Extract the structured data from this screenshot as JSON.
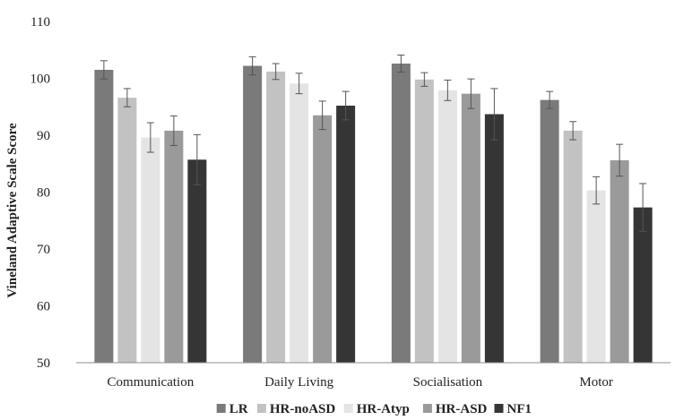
{
  "chart_data": {
    "type": "bar",
    "title": "",
    "xlabel": "",
    "ylabel": "Vineland Adaptive Scale Score",
    "ylim": [
      50,
      110
    ],
    "yticks": [
      50,
      60,
      70,
      80,
      90,
      100,
      110
    ],
    "grid": false,
    "legend_position": "bottom",
    "categories": [
      "Communication",
      "Daily Living",
      "Socialisation",
      "Motor"
    ],
    "series": [
      {
        "name": "LR",
        "color": "#7a7a7a",
        "values": [
          101.5,
          102.2,
          102.6,
          96.2
        ],
        "errors": [
          1.6,
          1.6,
          1.5,
          1.5
        ]
      },
      {
        "name": "HR-noASD",
        "color": "#c2c2c2",
        "values": [
          96.6,
          101.2,
          99.8,
          90.8
        ],
        "errors": [
          1.6,
          1.4,
          1.2,
          1.6
        ]
      },
      {
        "name": "HR-Atyp",
        "color": "#e4e4e4",
        "values": [
          89.6,
          99.1,
          97.9,
          80.3
        ],
        "errors": [
          2.6,
          1.8,
          1.8,
          2.4
        ]
      },
      {
        "name": "HR-ASD",
        "color": "#9a9a9a",
        "values": [
          90.8,
          93.5,
          97.3,
          85.6
        ],
        "errors": [
          2.6,
          2.5,
          2.6,
          2.8
        ]
      },
      {
        "name": "NF1",
        "color": "#353535",
        "values": [
          85.7,
          95.2,
          93.7,
          77.3
        ],
        "errors": [
          4.4,
          2.5,
          4.5,
          4.2
        ]
      }
    ]
  }
}
